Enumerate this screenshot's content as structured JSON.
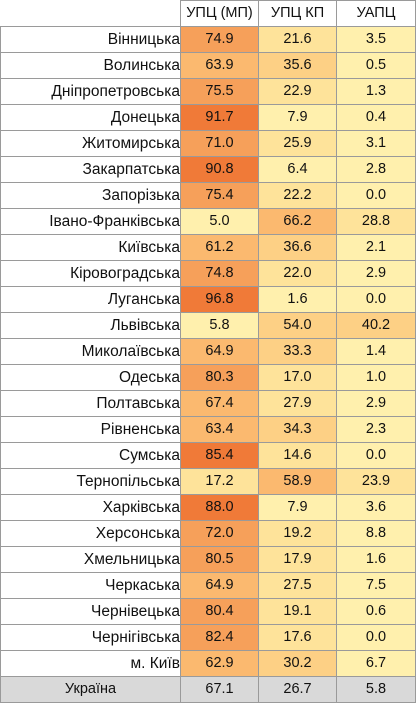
{
  "headers": [
    "УПЦ (МП)",
    "УПЦ КП",
    "УАПЦ"
  ],
  "colors": {
    "very_high": "#f07a38",
    "high": "#f6a05a",
    "mid_high": "#fbb96f",
    "mid": "#fdd085",
    "low": "#fee39a",
    "very_low": "#fff0ad",
    "total_row": "#d9d9d9"
  },
  "rows": [
    {
      "region": "Вінницька",
      "values": [
        "74.9",
        "21.6",
        "3.5"
      ]
    },
    {
      "region": "Волинська",
      "values": [
        "63.9",
        "35.6",
        "0.5"
      ]
    },
    {
      "region": "Дніпропетровська",
      "values": [
        "75.5",
        "22.9",
        "1.3"
      ]
    },
    {
      "region": "Донецька",
      "values": [
        "91.7",
        "7.9",
        "0.4"
      ]
    },
    {
      "region": "Житомирська",
      "values": [
        "71.0",
        "25.9",
        "3.1"
      ]
    },
    {
      "region": "Закарпатська",
      "values": [
        "90.8",
        "6.4",
        "2.8"
      ]
    },
    {
      "region": "Запорізька",
      "values": [
        "75.4",
        "22.2",
        "0.0"
      ]
    },
    {
      "region": "Івано-Франківська",
      "values": [
        "5.0",
        "66.2",
        "28.8"
      ]
    },
    {
      "region": "Київська",
      "values": [
        "61.2",
        "36.6",
        "2.1"
      ]
    },
    {
      "region": "Кіровоградська",
      "values": [
        "74.8",
        "22.0",
        "2.9"
      ]
    },
    {
      "region": "Луганська",
      "values": [
        "96.8",
        "1.6",
        "0.0"
      ]
    },
    {
      "region": "Львівська",
      "values": [
        "5.8",
        "54.0",
        "40.2"
      ]
    },
    {
      "region": "Миколаївська",
      "values": [
        "64.9",
        "33.3",
        "1.4"
      ]
    },
    {
      "region": "Одеська",
      "values": [
        "80.3",
        "17.0",
        "1.0"
      ]
    },
    {
      "region": "Полтавська",
      "values": [
        "67.4",
        "27.9",
        "2.9"
      ]
    },
    {
      "region": "Рівненська",
      "values": [
        "63.4",
        "34.3",
        "2.3"
      ]
    },
    {
      "region": "Сумська",
      "values": [
        "85.4",
        "14.6",
        "0.0"
      ]
    },
    {
      "region": "Тернопільська",
      "values": [
        "17.2",
        "58.9",
        "23.9"
      ]
    },
    {
      "region": "Харківська",
      "values": [
        "88.0",
        "7.9",
        "3.6"
      ]
    },
    {
      "region": "Херсонська",
      "values": [
        "72.0",
        "19.2",
        "8.8"
      ]
    },
    {
      "region": "Хмельницька",
      "values": [
        "80.5",
        "17.9",
        "1.6"
      ]
    },
    {
      "region": "Черкаська",
      "values": [
        "64.9",
        "27.5",
        "7.5"
      ]
    },
    {
      "region": "Чернівецька",
      "values": [
        "80.4",
        "19.1",
        "0.6"
      ]
    },
    {
      "region": "Чернігівська",
      "values": [
        "82.4",
        "17.6",
        "0.0"
      ]
    },
    {
      "region": "м. Київ",
      "values": [
        "62.9",
        "30.2",
        "6.7"
      ]
    }
  ],
  "total": {
    "region": "Україна",
    "values": [
      "67.1",
      "26.7",
      "5.8"
    ]
  }
}
